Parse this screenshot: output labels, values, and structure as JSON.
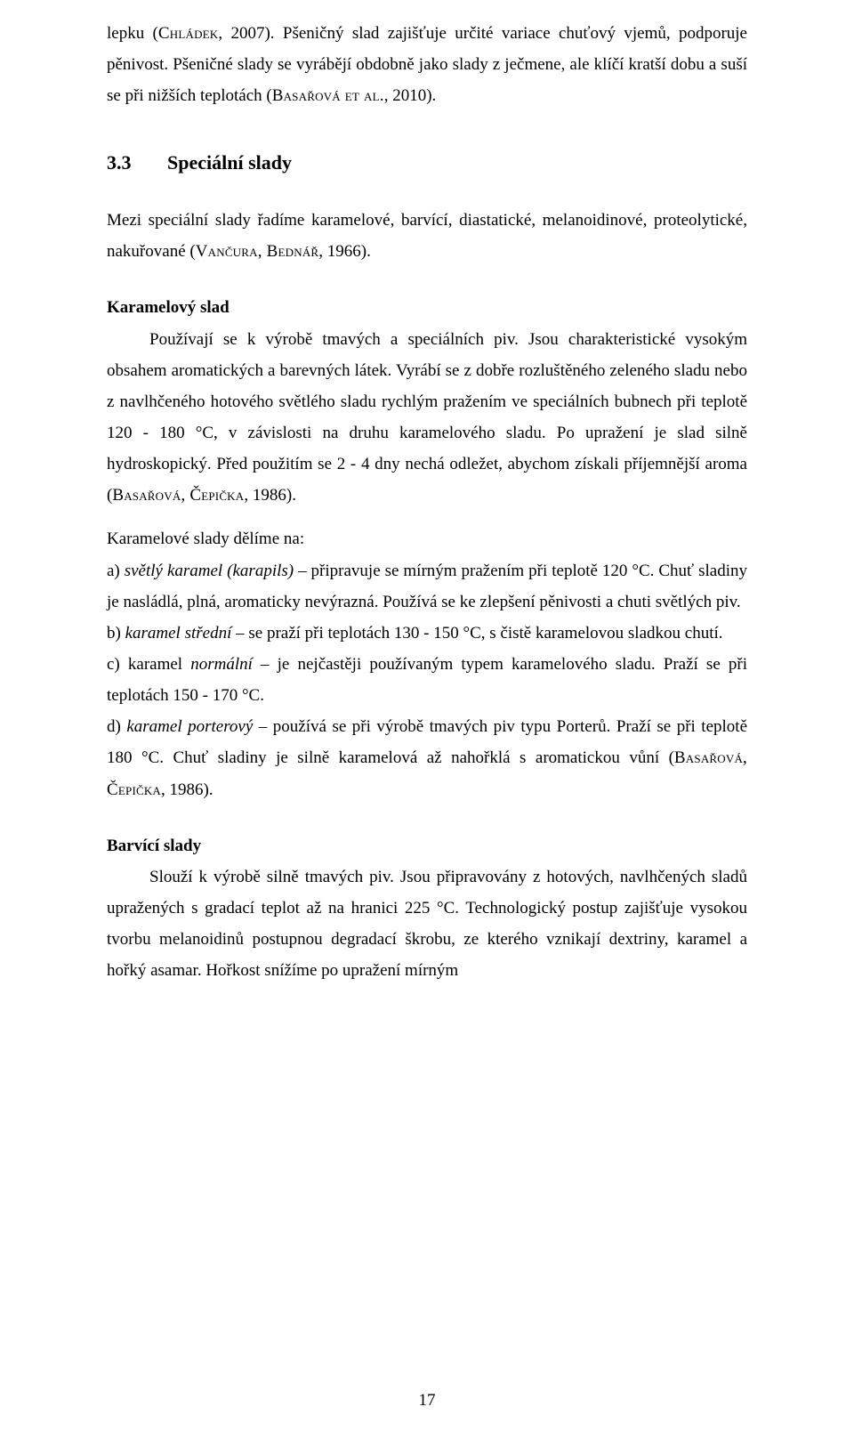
{
  "paragraphs": {
    "intro": {
      "t1a": "lepku (",
      "sc1": "Chládek",
      "t1b": ", 2007). Pšeničný slad zajišťuje určité variace chuťový vjemů, podporuje pěnivost. Pšeničné slady se vyrábějí obdobně jako slady z ječmene, ale klíčí kratší dobu a suší se při nižších teplotách (",
      "sc2": "Basařová et al.",
      "t1c": ", 2010)."
    },
    "heading": {
      "num": "3.3",
      "text": "Speciální slady"
    },
    "p2": {
      "a": "Mezi speciální slady řadíme karamelové, barvící, diastatické, melanoidinové, proteolytické, nakuřované (",
      "sc": "Vančura, Bednář",
      "b": ", 1966)."
    },
    "sh1": "Karamelový slad",
    "p3": {
      "a": "Používají se k výrobě tmavých a speciálních piv. Jsou charakteristické vysokým obsahem aromatických a barevných látek. Vyrábí se z dobře rozluštěného zeleného sladu nebo z navlhčeného hotového světlého sladu rychlým pražením ve speciálních bubnech při teplotě 120 - 180 °C, v závislosti na druhu karamelového sladu. Po upražení je slad silně hydroskopický. Před použitím se 2 - 4 dny nechá odležet, abychom získali příjemnější aroma (",
      "sc": "Basařová, Čepička",
      "b": ", 1986)."
    },
    "p4": "Karamelové slady dělíme na:",
    "p5": {
      "a": "a) ",
      "ital": "světlý karamel (karapils)",
      "b": " – připravuje se mírným pražením při teplotě 120 °C. Chuť sladiny je nasládlá, plná, aromaticky nevýrazná. Používá se ke zlepšení pěnivosti a chuti světlých piv."
    },
    "p6": {
      "a": "b) ",
      "ital": "karamel střední",
      "b": " – se praží při teplotách 130 - 150 °C, s čistě karamelovou sladkou chutí."
    },
    "p7": {
      "a": "c) ",
      "span1": "karamel ",
      "ital": "normální",
      "b": " – je nejčastěji používaným typem karamelového sladu. Praží se při teplotách 150 - 170 °C."
    },
    "p8": {
      "a": "d) ",
      "ital": "karamel porterový",
      "b": " – používá se při výrobě tmavých piv typu Porterů. Praží se při teplotě 180 °C. Chuť sladiny je silně karamelová až nahořklá s aromatickou vůní (",
      "sc": "Basařová, Čepička",
      "c": ", 1986)."
    },
    "sh2": "Barvící slady",
    "p9": "Slouží k výrobě silně tmavých piv. Jsou připravovány z hotových, navlhčených sladů upražených s gradací teplot až na hranici 225 °C. Technologický postup zajišťuje vysokou tvorbu melanoidinů postupnou degradací škrobu, ze kterého vznikají dextriny, karamel a hořký asamar. Hořkost snížíme po upražení mírným"
  },
  "pagenum": "17"
}
